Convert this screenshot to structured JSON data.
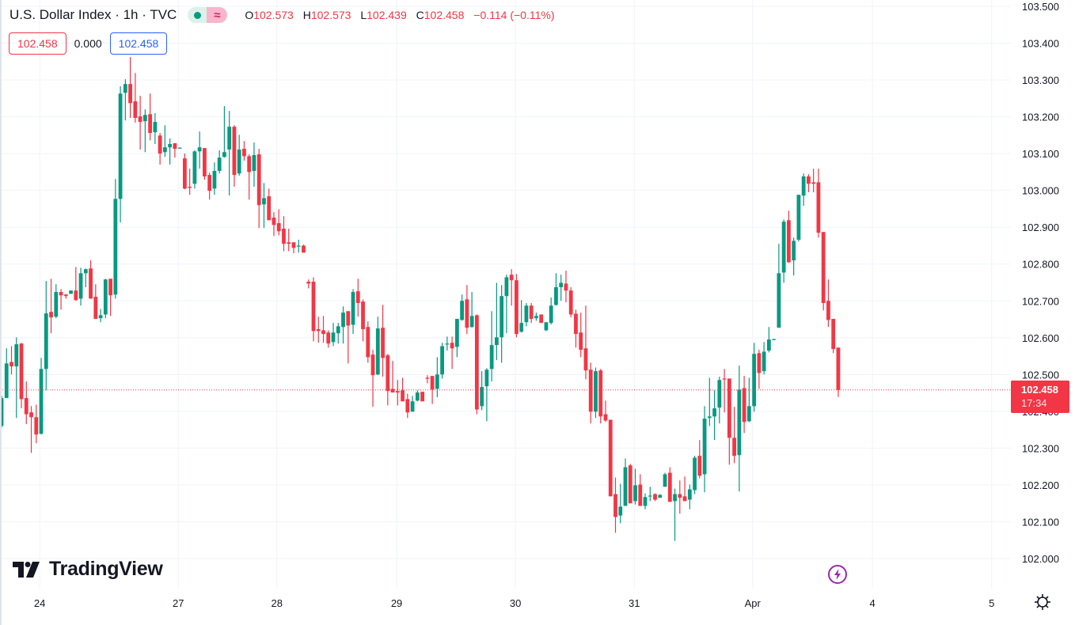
{
  "header": {
    "title": "U.S. Dollar Index · 1h · TVC",
    "ohlc": {
      "o_label": "O",
      "o": "102.573",
      "h_label": "H",
      "h": "102.573",
      "l_label": "L",
      "l": "102.439",
      "c_label": "C",
      "c": "102.458",
      "change": "−0.114 (−0.11%)"
    },
    "sell_price": "102.458",
    "spread": "0.000",
    "buy_price": "102.458"
  },
  "brand": {
    "logo_text": "TradingView"
  },
  "last_price": {
    "price": "102.458",
    "countdown": "17:34"
  },
  "colors": {
    "up": "#089981",
    "down": "#f23645",
    "grid": "#f0f3fa",
    "text": "#131722"
  },
  "chart_data": {
    "type": "candlestick",
    "title": "U.S. Dollar Index · 1h · TVC",
    "ylim": [
      102.0,
      103.5
    ],
    "yticks": [
      "103.500",
      "103.400",
      "103.300",
      "103.200",
      "103.100",
      "103.000",
      "102.900",
      "102.800",
      "102.700",
      "102.600",
      "102.500",
      "102.400",
      "102.300",
      "102.200",
      "102.100",
      "102.000"
    ],
    "xticks": [
      {
        "label": "24",
        "bar": 7.7
      },
      {
        "label": "27",
        "bar": 35.7
      },
      {
        "label": "28",
        "bar": 55.6
      },
      {
        "label": "29",
        "bar": 79.8
      },
      {
        "label": "30",
        "bar": 103.8
      },
      {
        "label": "31",
        "bar": 127.8
      },
      {
        "label": "Apr",
        "bar": 151.7
      },
      {
        "label": "4",
        "bar": 175.9
      },
      {
        "label": "5",
        "bar": 200.0
      }
    ],
    "last": 102.458,
    "ohlc_fields": [
      "open",
      "high",
      "low",
      "close"
    ],
    "candles": [
      [
        102.36,
        102.442,
        102.356,
        102.436
      ],
      [
        102.436,
        102.571,
        102.436,
        102.53
      ],
      [
        102.534,
        102.577,
        102.5,
        102.522
      ],
      [
        102.522,
        102.601,
        102.382,
        102.582
      ],
      [
        102.584,
        102.586,
        102.408,
        102.433
      ],
      [
        102.436,
        102.481,
        102.365,
        102.392
      ],
      [
        102.397,
        102.414,
        102.287,
        102.384
      ],
      [
        102.384,
        102.418,
        102.313,
        102.337
      ],
      [
        102.339,
        102.545,
        102.337,
        102.515
      ],
      [
        102.515,
        102.754,
        102.457,
        102.666
      ],
      [
        102.67,
        102.76,
        102.612,
        102.655
      ],
      [
        102.657,
        102.745,
        102.653,
        102.724
      ],
      [
        102.724,
        102.732,
        102.676,
        102.715
      ],
      [
        102.717,
        102.719,
        102.706,
        102.713
      ],
      [
        102.719,
        102.728,
        102.719,
        102.728
      ],
      [
        102.728,
        102.792,
        102.7,
        102.702
      ],
      [
        102.706,
        102.79,
        102.687,
        102.775
      ],
      [
        102.775,
        102.788,
        102.737,
        102.786
      ],
      [
        102.788,
        102.81,
        102.706,
        102.706
      ],
      [
        102.711,
        102.745,
        102.651,
        102.651
      ],
      [
        102.653,
        102.678,
        102.642,
        102.661
      ],
      [
        102.663,
        102.76,
        102.653,
        102.758
      ],
      [
        102.76,
        102.76,
        102.659,
        102.715
      ],
      [
        102.717,
        103.031,
        102.706,
        102.977
      ],
      [
        102.977,
        103.283,
        102.913,
        103.263
      ],
      [
        103.265,
        103.302,
        103.19,
        103.289
      ],
      [
        103.289,
        103.362,
        103.197,
        103.237
      ],
      [
        103.242,
        103.319,
        103.184,
        103.197
      ],
      [
        103.201,
        103.257,
        103.111,
        103.186
      ],
      [
        103.188,
        103.22,
        103.104,
        103.205
      ],
      [
        103.207,
        103.263,
        103.136,
        103.156
      ],
      [
        103.158,
        103.21,
        103.126,
        103.186
      ],
      [
        103.149,
        103.156,
        103.07,
        103.1
      ],
      [
        103.104,
        103.177,
        103.091,
        103.117
      ],
      [
        103.117,
        103.141,
        103.07,
        103.126
      ],
      [
        103.128,
        103.128,
        103.089,
        103.113
      ],
      [
        103.115,
        103.117,
        103.113,
        103.116
      ],
      [
        103.087,
        103.1,
        103.003,
        103.005
      ],
      [
        103.01,
        103.059,
        102.988,
        103.007
      ],
      [
        103.018,
        103.109,
        103.005,
        103.106
      ],
      [
        103.106,
        103.16,
        103.059,
        103.117
      ],
      [
        103.115,
        103.115,
        103.029,
        103.038
      ],
      [
        103.042,
        103.048,
        102.975,
        102.999
      ],
      [
        103.005,
        103.076,
        102.988,
        103.053
      ],
      [
        103.053,
        103.109,
        103.046,
        103.089
      ],
      [
        103.091,
        103.229,
        103.089,
        103.104
      ],
      [
        103.111,
        103.216,
        102.986,
        103.173
      ],
      [
        103.173,
        103.177,
        103.01,
        103.042
      ],
      [
        103.046,
        103.151,
        103.04,
        103.111
      ],
      [
        103.113,
        103.134,
        103.081,
        103.093
      ],
      [
        103.093,
        103.098,
        102.975,
        103.05
      ],
      [
        103.053,
        103.13,
        103.01,
        103.096
      ],
      [
        103.098,
        103.113,
        102.898,
        102.96
      ],
      [
        102.962,
        103.02,
        102.898,
        102.979
      ],
      [
        102.984,
        103.005,
        102.919,
        102.919
      ],
      [
        102.926,
        102.941,
        102.876,
        102.906
      ],
      [
        102.911,
        102.949,
        102.878,
        102.889
      ],
      [
        102.896,
        102.93,
        102.835,
        102.855
      ],
      [
        102.859,
        102.896,
        102.835,
        102.855
      ],
      [
        102.859,
        102.859,
        102.829,
        102.844
      ],
      [
        102.848,
        102.866,
        102.831,
        102.85
      ],
      [
        102.85,
        102.853,
        102.831,
        102.831
      ],
      [
        102.752,
        102.758,
        102.734,
        102.747
      ],
      [
        102.752,
        102.764,
        102.59,
        102.618
      ],
      [
        102.623,
        102.657,
        102.586,
        102.618
      ],
      [
        102.62,
        102.659,
        102.586,
        102.61
      ],
      [
        102.614,
        102.62,
        102.573,
        102.584
      ],
      [
        102.588,
        102.64,
        102.577,
        102.614
      ],
      [
        102.612,
        102.64,
        102.584,
        102.631
      ],
      [
        102.629,
        102.685,
        102.584,
        102.668
      ],
      [
        102.672,
        102.672,
        102.53,
        102.633
      ],
      [
        102.635,
        102.732,
        102.61,
        102.724
      ],
      [
        102.726,
        102.76,
        102.657,
        102.694
      ],
      [
        102.698,
        102.704,
        102.59,
        102.623
      ],
      [
        102.629,
        102.644,
        102.532,
        102.547
      ],
      [
        102.554,
        102.567,
        102.412,
        102.498
      ],
      [
        102.5,
        102.657,
        102.498,
        102.625
      ],
      [
        102.627,
        102.689,
        102.494,
        102.545
      ],
      [
        102.552,
        102.556,
        102.416,
        102.455
      ],
      [
        102.461,
        102.537,
        102.451,
        102.451
      ],
      [
        102.455,
        102.485,
        102.416,
        102.451
      ],
      [
        102.457,
        102.491,
        102.427,
        102.427
      ],
      [
        102.433,
        102.448,
        102.382,
        102.397
      ],
      [
        102.399,
        102.442,
        102.399,
        102.427
      ],
      [
        102.429,
        102.457,
        102.427,
        102.451
      ],
      [
        102.453,
        102.453,
        102.427,
        102.427
      ],
      [
        102.491,
        102.498,
        102.476,
        102.489
      ],
      [
        102.496,
        102.496,
        102.42,
        102.459
      ],
      [
        102.461,
        102.547,
        102.438,
        102.5
      ],
      [
        102.5,
        102.586,
        102.489,
        102.577
      ],
      [
        102.582,
        102.603,
        102.565,
        102.584
      ],
      [
        102.586,
        102.603,
        102.515,
        102.571
      ],
      [
        102.575,
        102.651,
        102.547,
        102.651
      ],
      [
        102.648,
        102.717,
        102.646,
        102.7
      ],
      [
        102.704,
        102.743,
        102.61,
        102.627
      ],
      [
        102.629,
        102.724,
        102.627,
        102.659
      ],
      [
        102.661,
        102.663,
        102.392,
        102.405
      ],
      [
        102.414,
        102.509,
        102.403,
        102.466
      ],
      [
        102.468,
        102.517,
        102.373,
        102.513
      ],
      [
        102.515,
        102.672,
        102.481,
        102.58
      ],
      [
        102.58,
        102.749,
        102.539,
        102.601
      ],
      [
        102.601,
        102.743,
        102.532,
        102.713
      ],
      [
        102.713,
        102.771,
        102.612,
        102.764
      ],
      [
        102.771,
        102.786,
        102.687,
        102.756
      ],
      [
        102.756,
        102.773,
        102.601,
        102.61
      ],
      [
        102.616,
        102.702,
        102.614,
        102.64
      ],
      [
        102.642,
        102.694,
        102.631,
        102.687
      ],
      [
        102.687,
        102.694,
        102.64,
        102.651
      ],
      [
        102.653,
        102.668,
        102.646,
        102.659
      ],
      [
        102.663,
        102.663,
        102.64,
        102.64
      ],
      [
        102.62,
        102.642,
        102.618,
        102.642
      ],
      [
        102.64,
        102.709,
        102.636,
        102.687
      ],
      [
        102.689,
        102.775,
        102.687,
        102.737
      ],
      [
        102.737,
        102.771,
        102.7,
        102.749
      ],
      [
        102.747,
        102.782,
        102.696,
        102.728
      ],
      [
        102.728,
        102.737,
        102.655,
        102.663
      ],
      [
        102.665,
        102.676,
        102.573,
        102.61
      ],
      [
        102.614,
        102.668,
        102.547,
        102.567
      ],
      [
        102.571,
        102.687,
        102.487,
        102.511
      ],
      [
        102.513,
        102.532,
        102.367,
        102.399
      ],
      [
        102.399,
        102.519,
        102.382,
        102.509
      ],
      [
        102.511,
        102.515,
        102.367,
        102.386
      ],
      [
        102.392,
        102.429,
        102.371,
        102.375
      ],
      [
        102.377,
        102.377,
        102.169,
        102.169
      ],
      [
        102.175,
        102.22,
        102.07,
        102.113
      ],
      [
        102.117,
        102.203,
        102.096,
        102.141
      ],
      [
        102.143,
        102.272,
        102.143,
        102.248
      ],
      [
        102.253,
        102.257,
        102.15,
        102.15
      ],
      [
        102.156,
        102.244,
        102.147,
        102.199
      ],
      [
        102.201,
        102.229,
        102.143,
        102.143
      ],
      [
        102.143,
        102.177,
        102.134,
        102.167
      ],
      [
        102.169,
        102.195,
        102.156,
        102.171
      ],
      [
        102.175,
        102.177,
        102.156,
        102.16
      ],
      [
        102.165,
        102.175,
        102.165,
        102.173
      ],
      [
        102.195,
        102.233,
        102.195,
        102.229
      ],
      [
        102.233,
        102.248,
        102.154,
        102.154
      ],
      [
        102.156,
        102.19,
        102.048,
        102.175
      ],
      [
        102.175,
        102.212,
        102.122,
        102.165
      ],
      [
        102.169,
        102.223,
        102.156,
        102.156
      ],
      [
        102.16,
        102.201,
        102.134,
        102.188
      ],
      [
        102.186,
        102.279,
        102.175,
        102.274
      ],
      [
        102.279,
        102.322,
        102.218,
        102.225
      ],
      [
        102.229,
        102.414,
        102.18,
        102.38
      ],
      [
        102.382,
        102.491,
        102.36,
        102.386
      ],
      [
        102.386,
        102.457,
        102.322,
        102.408
      ],
      [
        102.41,
        102.494,
        102.367,
        102.485
      ],
      [
        102.489,
        102.515,
        102.397,
        102.487
      ],
      [
        102.489,
        102.489,
        102.255,
        102.328
      ],
      [
        102.328,
        102.412,
        102.259,
        102.279
      ],
      [
        102.281,
        102.524,
        102.182,
        102.459
      ],
      [
        102.463,
        102.496,
        102.341,
        102.371
      ],
      [
        102.373,
        102.491,
        102.371,
        102.414
      ],
      [
        102.414,
        102.586,
        102.399,
        102.556
      ],
      [
        102.558,
        102.567,
        102.461,
        102.504
      ],
      [
        102.509,
        102.588,
        102.5,
        102.562
      ],
      [
        102.565,
        102.629,
        102.56,
        102.595
      ],
      [
        102.595,
        102.597,
        102.593,
        102.596
      ],
      [
        102.627,
        102.855,
        102.627,
        102.775
      ],
      [
        102.777,
        102.921,
        102.749,
        102.915
      ],
      [
        102.919,
        102.945,
        102.803,
        102.805
      ],
      [
        102.81,
        102.872,
        102.769,
        102.863
      ],
      [
        102.866,
        102.988,
        102.861,
        102.988
      ],
      [
        102.986,
        103.046,
        102.958,
        103.038
      ],
      [
        103.038,
        103.044,
        102.995,
        103.018
      ],
      [
        103.022,
        103.059,
        102.995,
        103.018
      ],
      [
        103.022,
        103.059,
        102.872,
        102.885
      ],
      [
        102.887,
        102.887,
        102.674,
        102.694
      ],
      [
        102.7,
        102.758,
        102.629,
        102.648
      ],
      [
        102.651,
        102.651,
        102.558,
        102.569
      ],
      [
        102.573,
        102.573,
        102.439,
        102.458
      ]
    ]
  }
}
